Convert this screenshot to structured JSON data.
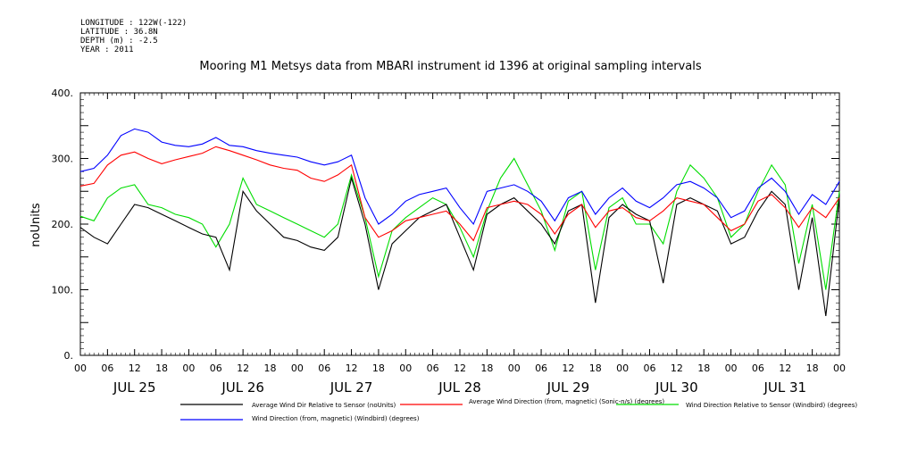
{
  "header": {
    "longitude": "LONGITUDE : 122W(-122)",
    "latitude": "LATITUDE : 36.8N",
    "depth": "DEPTH (m) : -2.5",
    "year": "YEAR : 2011"
  },
  "chart_data": {
    "type": "line",
    "title": "Mooring M1 Metsys data from MBARI instrument id 1396 at original sampling intervals",
    "ylabel": "noUnits",
    "ylim": [
      0,
      400
    ],
    "yticks": [
      0,
      100,
      200,
      300,
      400
    ],
    "ytick_labels": [
      "0.",
      "100.",
      "200.",
      "300.",
      "400."
    ],
    "xlim_hours": [
      0,
      168
    ],
    "xtick_labels": [
      "00",
      "06",
      "12",
      "18",
      "00",
      "06",
      "12",
      "18",
      "00",
      "06",
      "12",
      "18",
      "00",
      "06",
      "12",
      "18",
      "00",
      "06",
      "12",
      "18",
      "00",
      "06",
      "12",
      "18",
      "00",
      "06",
      "12",
      "18",
      "00"
    ],
    "day_labels": [
      "JUL 25",
      "JUL 26",
      "JUL 27",
      "JUL 28",
      "JUL 29",
      "JUL 30",
      "JUL 31"
    ],
    "x_hours": [
      0,
      3,
      6,
      9,
      12,
      15,
      18,
      21,
      24,
      27,
      30,
      33,
      36,
      39,
      42,
      45,
      48,
      51,
      54,
      57,
      60,
      63,
      66,
      69,
      72,
      75,
      78,
      81,
      84,
      87,
      90,
      93,
      96,
      99,
      102,
      105,
      108,
      111,
      114,
      117,
      120,
      123,
      126,
      129,
      132,
      135,
      138,
      141,
      144,
      147,
      150,
      153,
      156,
      159,
      162,
      165,
      168
    ],
    "series": [
      {
        "name": "Average Wind Dir Relative to Sensor (noUnits)",
        "color": "#000000",
        "values": [
          195,
          180,
          170,
          200,
          230,
          225,
          215,
          205,
          195,
          185,
          180,
          130,
          250,
          220,
          200,
          180,
          175,
          165,
          160,
          180,
          270,
          200,
          100,
          170,
          190,
          210,
          220,
          230,
          180,
          130,
          215,
          230,
          240,
          220,
          200,
          170,
          220,
          230,
          80,
          210,
          230,
          215,
          205,
          110,
          230,
          240,
          230,
          220,
          170,
          180,
          220,
          250,
          230,
          100,
          210,
          60,
          240
        ]
      },
      {
        "name": "Average Wind Direction (from, magnetic) (Sonic-n/s) (degrees)",
        "color": "#ff0000",
        "values": [
          258,
          262,
          290,
          305,
          310,
          300,
          292,
          298,
          303,
          308,
          318,
          312,
          305,
          298,
          290,
          285,
          282,
          270,
          265,
          275,
          290,
          210,
          180,
          190,
          205,
          210,
          215,
          220,
          200,
          175,
          225,
          230,
          235,
          230,
          215,
          185,
          215,
          230,
          195,
          220,
          225,
          210,
          205,
          220,
          240,
          235,
          230,
          210,
          190,
          200,
          235,
          245,
          225,
          195,
          225,
          210,
          240
        ]
      },
      {
        "name": "Wind Direction Relative to Sensor (Windbird) (degrees)",
        "color": "#00dd00",
        "values": [
          212,
          205,
          240,
          255,
          260,
          230,
          225,
          215,
          210,
          200,
          165,
          200,
          270,
          230,
          220,
          210,
          200,
          190,
          180,
          200,
          275,
          210,
          120,
          190,
          210,
          225,
          240,
          230,
          195,
          150,
          220,
          270,
          300,
          260,
          220,
          160,
          235,
          250,
          130,
          225,
          240,
          200,
          200,
          170,
          250,
          290,
          270,
          240,
          180,
          200,
          250,
          290,
          260,
          140,
          230,
          100,
          250
        ]
      },
      {
        "name": "Wind Direction (from, magnetic) (Windbird) (degrees)",
        "color": "#0000ff",
        "values": [
          280,
          285,
          305,
          335,
          345,
          340,
          325,
          320,
          318,
          322,
          332,
          320,
          318,
          312,
          308,
          305,
          302,
          295,
          290,
          295,
          305,
          240,
          200,
          215,
          235,
          245,
          250,
          255,
          225,
          200,
          250,
          255,
          260,
          250,
          235,
          205,
          240,
          250,
          215,
          240,
          255,
          235,
          225,
          240,
          260,
          265,
          255,
          240,
          210,
          220,
          255,
          270,
          250,
          215,
          245,
          230,
          265
        ]
      }
    ]
  },
  "legend": [
    {
      "label": "Average Wind Dir Relative to Sensor (noUnits)",
      "color": "#000000"
    },
    {
      "label": "Average Wind Direction (from, magnetic) (Sonic-n/s) (degrees)",
      "color": "#ff0000"
    },
    {
      "label": "Wind Direction Relative to Sensor (Windbird) (degrees)",
      "color": "#00dd00"
    },
    {
      "label": "Wind Direction (from, magnetic) (Windbird) (degrees)",
      "color": "#0000ff"
    }
  ]
}
